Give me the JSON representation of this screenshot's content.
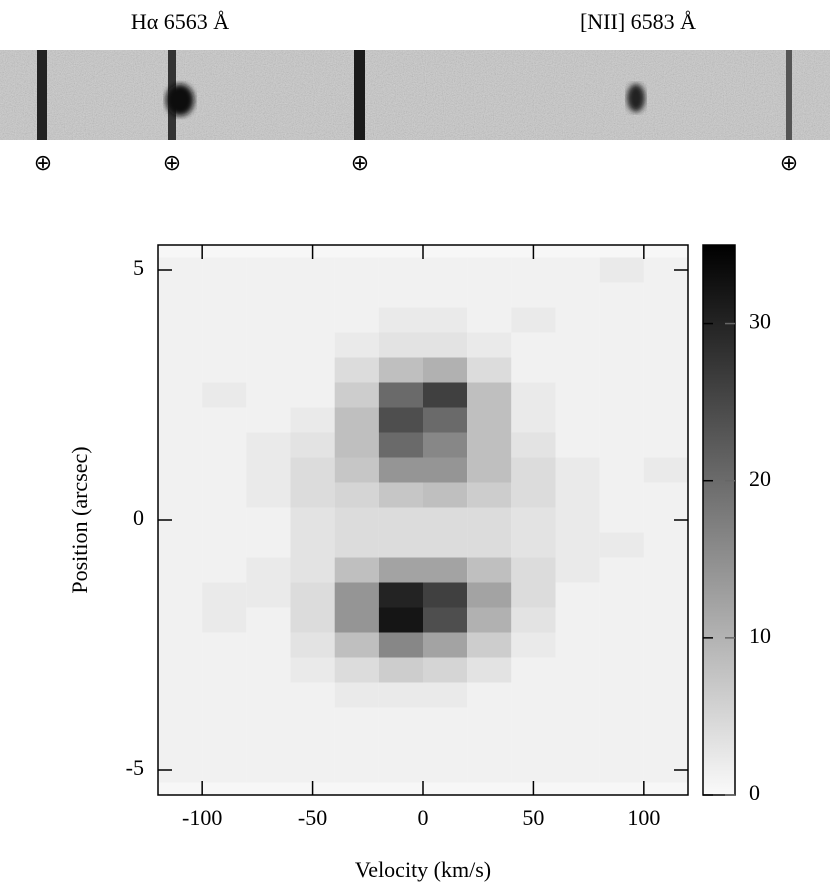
{
  "spectrum": {
    "labels": [
      "Hα 6563 Å",
      "[NII] 6583 Å"
    ],
    "markers": [
      "⊕",
      "⊕",
      "⊕",
      "⊕"
    ]
  },
  "chart_data": {
    "type": "heatmap",
    "x_label": "Velocity (km/s)",
    "y_label": "Position (arcsec)",
    "xlim": [
      -120,
      120
    ],
    "xticks": [
      -100,
      -50,
      0,
      50,
      100
    ],
    "ylim": [
      -5.5,
      5.5
    ],
    "yticks": [
      -5,
      0,
      5
    ],
    "zlim": [
      0,
      35
    ],
    "zticks": [
      0,
      10,
      20,
      30
    ],
    "colormap": "gray-reversed",
    "x": [
      -110,
      -90,
      -70,
      -50,
      -30,
      -10,
      10,
      30,
      50,
      70,
      90,
      110
    ],
    "y": [
      5,
      4.5,
      4,
      3.5,
      3,
      2.5,
      2,
      1.5,
      1,
      0.5,
      0,
      -0.5,
      -1,
      -1.5,
      -2,
      -2.5,
      -3,
      -3.5,
      -4,
      -4.5,
      -5
    ],
    "z": [
      [
        1,
        1,
        1,
        1,
        1,
        1,
        1,
        1,
        1,
        1,
        2,
        1
      ],
      [
        1,
        1,
        1,
        1,
        1,
        1,
        1,
        1,
        1,
        1,
        1,
        1
      ],
      [
        1,
        1,
        1,
        1,
        1,
        2,
        2,
        1,
        2,
        1,
        1,
        1
      ],
      [
        1,
        1,
        1,
        1,
        2,
        3,
        3,
        2,
        1,
        1,
        1,
        1
      ],
      [
        1,
        1,
        1,
        1,
        4,
        8,
        10,
        4,
        1,
        1,
        1,
        1
      ],
      [
        1,
        2,
        1,
        1,
        6,
        20,
        26,
        8,
        2,
        1,
        1,
        1
      ],
      [
        1,
        1,
        1,
        2,
        8,
        24,
        20,
        8,
        2,
        1,
        1,
        1
      ],
      [
        1,
        1,
        2,
        3,
        8,
        20,
        16,
        8,
        3,
        1,
        1,
        1
      ],
      [
        1,
        1,
        2,
        4,
        7,
        14,
        14,
        8,
        4,
        2,
        1,
        2
      ],
      [
        1,
        1,
        2,
        4,
        5,
        7,
        8,
        6,
        4,
        2,
        1,
        1
      ],
      [
        1,
        1,
        1,
        3,
        4,
        4,
        4,
        4,
        3,
        2,
        1,
        1
      ],
      [
        1,
        1,
        1,
        3,
        4,
        4,
        4,
        4,
        3,
        2,
        2,
        1
      ],
      [
        1,
        1,
        2,
        3,
        8,
        12,
        12,
        8,
        4,
        2,
        1,
        1
      ],
      [
        1,
        2,
        2,
        4,
        14,
        30,
        26,
        12,
        4,
        1,
        1,
        1
      ],
      [
        1,
        2,
        1,
        4,
        14,
        32,
        24,
        10,
        3,
        1,
        1,
        1
      ],
      [
        1,
        1,
        1,
        3,
        8,
        16,
        12,
        6,
        2,
        1,
        1,
        1
      ],
      [
        1,
        1,
        1,
        2,
        4,
        6,
        5,
        3,
        1,
        1,
        1,
        1
      ],
      [
        1,
        1,
        1,
        1,
        2,
        2,
        2,
        1,
        1,
        1,
        1,
        1
      ],
      [
        1,
        1,
        1,
        1,
        1,
        1,
        1,
        1,
        1,
        1,
        1,
        1
      ],
      [
        1,
        1,
        1,
        1,
        1,
        1,
        1,
        1,
        1,
        1,
        1,
        1
      ],
      [
        1,
        1,
        1,
        1,
        1,
        1,
        1,
        1,
        1,
        1,
        1,
        1
      ]
    ]
  }
}
